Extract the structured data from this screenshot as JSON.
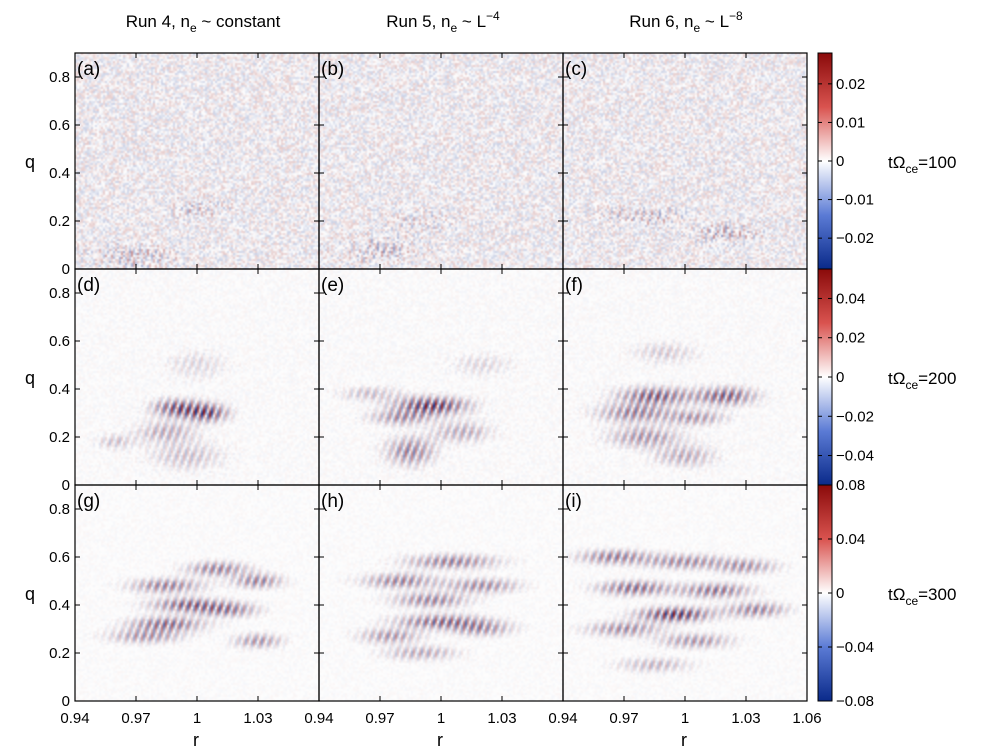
{
  "figure": {
    "column_titles": [
      {
        "prefix": "Run 4, n",
        "sub": "e",
        "suffix": " ~ constant",
        "sup": ""
      },
      {
        "prefix": "Run 5, n",
        "sub": "e",
        "suffix": " ~ L",
        "sup": "−4"
      },
      {
        "prefix": "Run 6, n",
        "sub": "e",
        "suffix": " ~ L",
        "sup": "−8"
      }
    ],
    "row_labels": [
      {
        "pre": "tΩ",
        "sub": "ce",
        "post": "=100"
      },
      {
        "pre": "tΩ",
        "sub": "ce",
        "post": "=200"
      },
      {
        "pre": "tΩ",
        "sub": "ce",
        "post": "=300"
      }
    ],
    "panel_labels": [
      "(a)",
      "(b)",
      "(c)",
      "(d)",
      "(e)",
      "(f)",
      "(g)",
      "(h)",
      "(i)"
    ],
    "ylabel": "q",
    "xlabel": "r",
    "colors": {
      "neg": "#0a2a8a",
      "mid": "#ffffff",
      "pos": "#8a0a0a"
    }
  },
  "chart_data": {
    "type": "heatmap",
    "layout": "3x3 grid of panels, shared axes",
    "x_range": [
      0.94,
      1.06
    ],
    "x_ticks": [
      0.94,
      0.97,
      1,
      1.03
    ],
    "x_tick_labels": [
      "0.94",
      "0.97",
      "1",
      "1.03"
    ],
    "x_tick_labels_last": [
      "0.94",
      "0.97",
      "1",
      "1.03",
      "1.06"
    ],
    "y_range": [
      0,
      0.9
    ],
    "y_ticks": [
      0,
      0.2,
      0.4,
      0.6,
      0.8
    ],
    "y_tick_labels": [
      "0",
      "0.2",
      "0.4",
      "0.6",
      "0.8"
    ],
    "colorbars": [
      {
        "range": [
          -0.028,
          0.028
        ],
        "ticks": [
          0.02,
          0.01,
          0,
          -0.01,
          -0.02
        ],
        "tick_labels": [
          "0.02",
          "0.01",
          "0",
          "−0.01",
          "−0.02"
        ]
      },
      {
        "range": [
          -0.055,
          0.055
        ],
        "ticks": [
          0.04,
          0.02,
          0,
          -0.02,
          -0.04
        ],
        "tick_labels": [
          "0.04",
          "0.02",
          "0",
          "−0.02",
          "−0.04"
        ]
      },
      {
        "range": [
          -0.08,
          0.08
        ],
        "ticks": [
          0.08,
          0.04,
          0,
          -0.04,
          -0.08
        ],
        "tick_labels": [
          "0.08",
          "0.04",
          "0",
          "−0.04",
          "−0.08"
        ]
      }
    ],
    "panels": [
      {
        "label": "(a)",
        "row": 0,
        "col": 0,
        "noise": 0.35,
        "blobs": [
          {
            "x": 1.0,
            "y": 0.25,
            "sx": 0.01,
            "sy": 0.03,
            "a": 0.25
          },
          {
            "x": 0.97,
            "y": 0.05,
            "sx": 0.015,
            "sy": 0.04,
            "a": 0.3
          }
        ]
      },
      {
        "label": "(b)",
        "row": 0,
        "col": 1,
        "noise": 0.35,
        "blobs": [
          {
            "x": 0.97,
            "y": 0.08,
            "sx": 0.015,
            "sy": 0.04,
            "a": 0.3
          },
          {
            "x": 0.99,
            "y": 0.2,
            "sx": 0.012,
            "sy": 0.03,
            "a": 0.2
          }
        ]
      },
      {
        "label": "(c)",
        "row": 0,
        "col": 2,
        "noise": 0.35,
        "blobs": [
          {
            "x": 1.02,
            "y": 0.15,
            "sx": 0.012,
            "sy": 0.03,
            "a": 0.35
          },
          {
            "x": 0.98,
            "y": 0.22,
            "sx": 0.015,
            "sy": 0.03,
            "a": 0.3
          }
        ]
      },
      {
        "label": "(d)",
        "row": 1,
        "col": 0,
        "noise": 0.08,
        "blobs": [
          {
            "x": 0.99,
            "y": 0.32,
            "sx": 0.008,
            "sy": 0.025,
            "a": 0.8
          },
          {
            "x": 1.005,
            "y": 0.3,
            "sx": 0.007,
            "sy": 0.025,
            "a": 0.85
          },
          {
            "x": 0.985,
            "y": 0.22,
            "sx": 0.01,
            "sy": 0.03,
            "a": 0.4
          },
          {
            "x": 0.995,
            "y": 0.12,
            "sx": 0.012,
            "sy": 0.04,
            "a": 0.3
          },
          {
            "x": 0.96,
            "y": 0.18,
            "sx": 0.006,
            "sy": 0.02,
            "a": 0.3
          },
          {
            "x": 1.0,
            "y": 0.5,
            "sx": 0.01,
            "sy": 0.04,
            "a": 0.2
          }
        ]
      },
      {
        "label": "(e)",
        "row": 1,
        "col": 1,
        "noise": 0.08,
        "blobs": [
          {
            "x": 0.995,
            "y": 0.33,
            "sx": 0.012,
            "sy": 0.025,
            "a": 0.95
          },
          {
            "x": 0.98,
            "y": 0.28,
            "sx": 0.01,
            "sy": 0.02,
            "a": 0.5
          },
          {
            "x": 0.985,
            "y": 0.14,
            "sx": 0.008,
            "sy": 0.04,
            "a": 0.6
          },
          {
            "x": 1.01,
            "y": 0.22,
            "sx": 0.01,
            "sy": 0.03,
            "a": 0.4
          },
          {
            "x": 0.965,
            "y": 0.38,
            "sx": 0.01,
            "sy": 0.02,
            "a": 0.3
          },
          {
            "x": 1.02,
            "y": 0.5,
            "sx": 0.01,
            "sy": 0.03,
            "a": 0.2
          }
        ]
      },
      {
        "label": "(f)",
        "row": 1,
        "col": 2,
        "noise": 0.08,
        "blobs": [
          {
            "x": 0.985,
            "y": 0.37,
            "sx": 0.012,
            "sy": 0.025,
            "a": 0.75
          },
          {
            "x": 1.02,
            "y": 0.37,
            "sx": 0.01,
            "sy": 0.025,
            "a": 0.75
          },
          {
            "x": 0.975,
            "y": 0.3,
            "sx": 0.012,
            "sy": 0.025,
            "a": 0.6
          },
          {
            "x": 1.005,
            "y": 0.28,
            "sx": 0.01,
            "sy": 0.02,
            "a": 0.5
          },
          {
            "x": 0.98,
            "y": 0.2,
            "sx": 0.012,
            "sy": 0.03,
            "a": 0.5
          },
          {
            "x": 1.0,
            "y": 0.12,
            "sx": 0.01,
            "sy": 0.03,
            "a": 0.4
          },
          {
            "x": 0.99,
            "y": 0.55,
            "sx": 0.01,
            "sy": 0.03,
            "a": 0.25
          }
        ]
      },
      {
        "label": "(g)",
        "row": 2,
        "col": 0,
        "noise": 0.06,
        "blobs": [
          {
            "x": 1.01,
            "y": 0.55,
            "sx": 0.01,
            "sy": 0.02,
            "a": 0.6
          },
          {
            "x": 1.03,
            "y": 0.5,
            "sx": 0.008,
            "sy": 0.02,
            "a": 0.6
          },
          {
            "x": 0.985,
            "y": 0.48,
            "sx": 0.012,
            "sy": 0.02,
            "a": 0.6
          },
          {
            "x": 0.995,
            "y": 0.4,
            "sx": 0.012,
            "sy": 0.02,
            "a": 0.7
          },
          {
            "x": 1.015,
            "y": 0.38,
            "sx": 0.01,
            "sy": 0.02,
            "a": 0.6
          },
          {
            "x": 0.985,
            "y": 0.32,
            "sx": 0.012,
            "sy": 0.02,
            "a": 0.7
          },
          {
            "x": 1.03,
            "y": 0.25,
            "sx": 0.008,
            "sy": 0.02,
            "a": 0.5
          },
          {
            "x": 0.975,
            "y": 0.27,
            "sx": 0.012,
            "sy": 0.02,
            "a": 0.5
          }
        ]
      },
      {
        "label": "(h)",
        "row": 2,
        "col": 1,
        "noise": 0.06,
        "blobs": [
          {
            "x": 1.005,
            "y": 0.58,
            "sx": 0.015,
            "sy": 0.02,
            "a": 0.6
          },
          {
            "x": 0.98,
            "y": 0.5,
            "sx": 0.012,
            "sy": 0.02,
            "a": 0.6
          },
          {
            "x": 1.02,
            "y": 0.48,
            "sx": 0.012,
            "sy": 0.02,
            "a": 0.55
          },
          {
            "x": 0.995,
            "y": 0.42,
            "sx": 0.012,
            "sy": 0.02,
            "a": 0.6
          },
          {
            "x": 1.0,
            "y": 0.33,
            "sx": 0.015,
            "sy": 0.02,
            "a": 0.7
          },
          {
            "x": 0.975,
            "y": 0.27,
            "sx": 0.01,
            "sy": 0.02,
            "a": 0.5
          },
          {
            "x": 1.02,
            "y": 0.3,
            "sx": 0.01,
            "sy": 0.02,
            "a": 0.5
          },
          {
            "x": 0.99,
            "y": 0.2,
            "sx": 0.012,
            "sy": 0.02,
            "a": 0.4
          }
        ]
      },
      {
        "label": "(i)",
        "row": 2,
        "col": 2,
        "noise": 0.06,
        "blobs": [
          {
            "x": 0.965,
            "y": 0.6,
            "sx": 0.012,
            "sy": 0.02,
            "a": 0.6
          },
          {
            "x": 1.0,
            "y": 0.58,
            "sx": 0.014,
            "sy": 0.02,
            "a": 0.55
          },
          {
            "x": 1.03,
            "y": 0.56,
            "sx": 0.01,
            "sy": 0.02,
            "a": 0.5
          },
          {
            "x": 0.975,
            "y": 0.47,
            "sx": 0.012,
            "sy": 0.02,
            "a": 0.7
          },
          {
            "x": 1.015,
            "y": 0.46,
            "sx": 0.012,
            "sy": 0.02,
            "a": 0.65
          },
          {
            "x": 0.995,
            "y": 0.36,
            "sx": 0.012,
            "sy": 0.02,
            "a": 0.95
          },
          {
            "x": 1.035,
            "y": 0.38,
            "sx": 0.01,
            "sy": 0.02,
            "a": 0.6
          },
          {
            "x": 0.97,
            "y": 0.3,
            "sx": 0.012,
            "sy": 0.02,
            "a": 0.55
          },
          {
            "x": 1.005,
            "y": 0.25,
            "sx": 0.012,
            "sy": 0.02,
            "a": 0.5
          },
          {
            "x": 0.985,
            "y": 0.15,
            "sx": 0.012,
            "sy": 0.02,
            "a": 0.35
          }
        ]
      }
    ]
  }
}
